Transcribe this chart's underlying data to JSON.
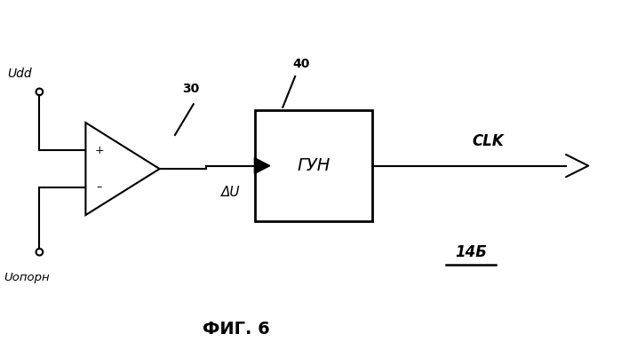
{
  "bg_color": "#ffffff",
  "fig_width": 6.99,
  "fig_height": 3.94,
  "dpi": 100,
  "title": "ФИГ. 6",
  "label_Udd": "Udd",
  "label_Uoporn": "Uопорн",
  "label_30": "30",
  "label_40": "40",
  "label_delta_U": "ΔU",
  "label_GUN": "ГУН",
  "label_CLK": "CLK",
  "label_14B": "14Б",
  "lw": 1.5,
  "circle_r": 0.055
}
